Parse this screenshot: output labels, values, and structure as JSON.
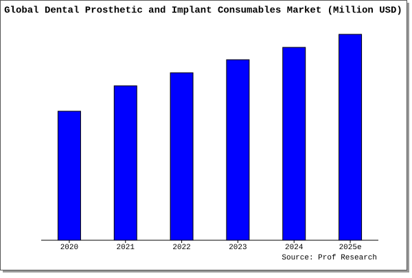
{
  "chart_data": {
    "type": "bar",
    "title": "Global Dental Prosthetic and Implant Consumables Market (Million USD)",
    "source": "Source: Prof Research",
    "categories": [
      "2020",
      "2021",
      "2022",
      "2023",
      "2024",
      "2025e"
    ],
    "values": [
      188,
      225,
      244,
      263,
      281,
      300
    ],
    "color": "#0000ff",
    "ylim": [
      0,
      302
    ]
  }
}
